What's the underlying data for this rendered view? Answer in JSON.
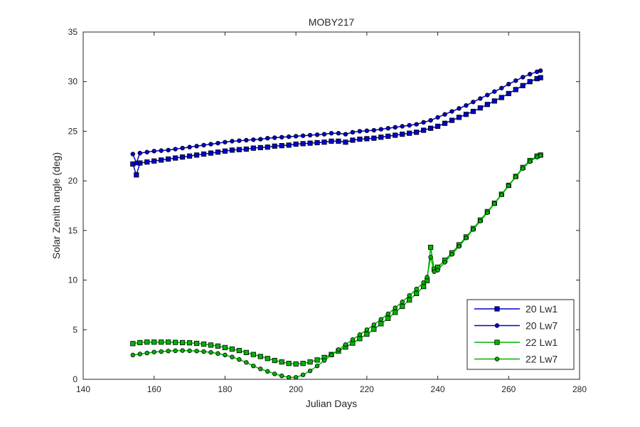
{
  "chart_data": {
    "type": "line",
    "title": "MOBY217",
    "xlabel": "Julian Days",
    "ylabel": "Solar Zenith angle (deg)",
    "xlim": [
      140,
      280
    ],
    "ylim": [
      0,
      35
    ],
    "xticks": [
      140,
      160,
      180,
      200,
      220,
      240,
      260,
      280
    ],
    "yticks": [
      0,
      5,
      10,
      15,
      20,
      25,
      30,
      35
    ],
    "grid": false,
    "legend_position": "bottom-right",
    "series": [
      {
        "name": "20 Lw1",
        "color": "#0000cc",
        "marker": "square",
        "x": [
          154,
          155,
          156,
          158,
          160,
          162,
          164,
          166,
          168,
          170,
          172,
          174,
          176,
          178,
          180,
          182,
          184,
          186,
          188,
          190,
          192,
          194,
          196,
          198,
          200,
          202,
          204,
          206,
          208,
          210,
          212,
          214,
          216,
          218,
          220,
          222,
          224,
          226,
          228,
          230,
          232,
          234,
          236,
          238,
          240,
          242,
          244,
          246,
          248,
          250,
          252,
          254,
          256,
          258,
          260,
          262,
          264,
          266,
          268,
          269
        ],
        "y": [
          21.7,
          20.6,
          21.8,
          21.9,
          22.0,
          22.1,
          22.2,
          22.3,
          22.4,
          22.5,
          22.6,
          22.7,
          22.8,
          22.9,
          23.0,
          23.1,
          23.15,
          23.2,
          23.3,
          23.35,
          23.4,
          23.5,
          23.55,
          23.6,
          23.7,
          23.75,
          23.8,
          23.85,
          23.9,
          24.0,
          24.0,
          23.9,
          24.1,
          24.2,
          24.25,
          24.3,
          24.4,
          24.5,
          24.6,
          24.7,
          24.8,
          24.9,
          25.1,
          25.3,
          25.5,
          25.8,
          26.1,
          26.4,
          26.7,
          27.0,
          27.35,
          27.7,
          28.05,
          28.4,
          28.8,
          29.2,
          29.6,
          30.0,
          30.3,
          30.4
        ]
      },
      {
        "name": "20 Lw7",
        "color": "#0000cc",
        "marker": "circle",
        "x": [
          154,
          155,
          156,
          158,
          160,
          162,
          164,
          166,
          168,
          170,
          172,
          174,
          176,
          178,
          180,
          182,
          184,
          186,
          188,
          190,
          192,
          194,
          196,
          198,
          200,
          202,
          204,
          206,
          208,
          210,
          212,
          214,
          216,
          218,
          220,
          222,
          224,
          226,
          228,
          230,
          232,
          234,
          236,
          238,
          240,
          242,
          244,
          246,
          248,
          250,
          252,
          254,
          256,
          258,
          260,
          262,
          264,
          266,
          268,
          269
        ],
        "y": [
          22.7,
          21.8,
          22.8,
          22.9,
          23.0,
          23.05,
          23.1,
          23.2,
          23.3,
          23.4,
          23.5,
          23.6,
          23.7,
          23.8,
          23.9,
          24.0,
          24.05,
          24.1,
          24.15,
          24.2,
          24.3,
          24.35,
          24.4,
          24.45,
          24.5,
          24.55,
          24.6,
          24.65,
          24.7,
          24.8,
          24.8,
          24.7,
          24.9,
          25.0,
          25.05,
          25.1,
          25.2,
          25.3,
          25.4,
          25.5,
          25.6,
          25.7,
          25.9,
          26.1,
          26.4,
          26.7,
          27.0,
          27.3,
          27.6,
          27.95,
          28.3,
          28.65,
          29.0,
          29.35,
          29.75,
          30.1,
          30.45,
          30.75,
          31.0,
          31.1
        ]
      },
      {
        "name": "22 Lw1",
        "color": "#00b400",
        "marker": "square",
        "x": [
          154,
          156,
          158,
          160,
          162,
          164,
          166,
          168,
          170,
          172,
          174,
          176,
          178,
          180,
          182,
          184,
          186,
          188,
          190,
          192,
          194,
          196,
          198,
          200,
          202,
          204,
          206,
          208,
          210,
          212,
          214,
          216,
          218,
          220,
          222,
          224,
          226,
          228,
          230,
          232,
          234,
          236,
          237,
          238,
          239,
          240,
          242,
          244,
          246,
          248,
          250,
          252,
          254,
          256,
          258,
          260,
          262,
          264,
          266,
          268,
          269
        ],
        "y": [
          3.6,
          3.7,
          3.75,
          3.75,
          3.75,
          3.75,
          3.72,
          3.7,
          3.68,
          3.62,
          3.55,
          3.45,
          3.35,
          3.2,
          3.05,
          2.9,
          2.7,
          2.5,
          2.3,
          2.1,
          1.9,
          1.75,
          1.6,
          1.55,
          1.6,
          1.75,
          1.95,
          2.2,
          2.5,
          2.85,
          3.25,
          3.65,
          4.1,
          4.55,
          5.05,
          5.6,
          6.15,
          6.75,
          7.35,
          8.0,
          8.65,
          9.35,
          9.95,
          13.3,
          11.1,
          11.3,
          12.0,
          12.75,
          13.55,
          14.35,
          15.2,
          16.05,
          16.9,
          17.75,
          18.65,
          19.55,
          20.45,
          21.35,
          22.05,
          22.5,
          22.6
        ]
      },
      {
        "name": "22 Lw7",
        "color": "#00b400",
        "marker": "circle",
        "x": [
          154,
          156,
          158,
          160,
          162,
          164,
          166,
          168,
          170,
          172,
          174,
          176,
          178,
          180,
          182,
          184,
          186,
          188,
          190,
          192,
          194,
          196,
          198,
          200,
          202,
          204,
          206,
          208,
          210,
          212,
          214,
          216,
          218,
          220,
          222,
          224,
          226,
          228,
          230,
          232,
          234,
          236,
          237,
          238,
          239,
          240,
          242,
          244,
          246,
          248,
          250,
          252,
          254,
          256,
          258,
          260,
          262,
          264,
          266,
          268,
          269
        ],
        "y": [
          2.45,
          2.55,
          2.65,
          2.75,
          2.8,
          2.85,
          2.88,
          2.9,
          2.88,
          2.85,
          2.8,
          2.72,
          2.6,
          2.45,
          2.25,
          2.0,
          1.7,
          1.35,
          1.05,
          0.8,
          0.55,
          0.35,
          0.2,
          0.2,
          0.45,
          0.85,
          1.35,
          1.9,
          2.45,
          3.0,
          3.5,
          4.0,
          4.5,
          5.0,
          5.5,
          6.05,
          6.6,
          7.2,
          7.8,
          8.45,
          9.1,
          9.75,
          10.3,
          12.3,
          10.85,
          11.0,
          11.8,
          12.6,
          13.4,
          14.25,
          15.1,
          15.95,
          16.8,
          17.7,
          18.6,
          19.5,
          20.4,
          21.25,
          21.95,
          22.4,
          22.55
        ]
      }
    ]
  }
}
